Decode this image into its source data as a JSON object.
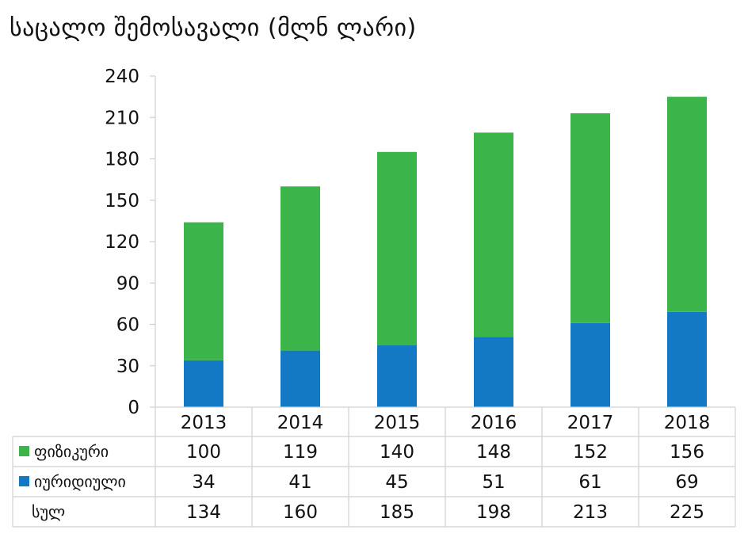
{
  "chart_data": {
    "type": "bar",
    "stacked": true,
    "title": "საცალო შემოსავალი (მლნ ლარი)",
    "categories": [
      "2013",
      "2014",
      "2015",
      "2016",
      "2017",
      "2018"
    ],
    "series": [
      {
        "name": "იურიდიული",
        "color": "#1479c4",
        "values": [
          34,
          41,
          45,
          51,
          61,
          69
        ]
      },
      {
        "name": "ფიზიკური",
        "color": "#3bb54a",
        "values": [
          100,
          119,
          140,
          148,
          152,
          156
        ]
      }
    ],
    "totals_label": "სულ",
    "totals": [
      134,
      160,
      185,
      198,
      213,
      225
    ],
    "ylim": [
      0,
      240
    ],
    "yticks": [
      0,
      30,
      60,
      90,
      120,
      150,
      180,
      210,
      240
    ],
    "data_table": {
      "rows": [
        {
          "label": "ფიზიკური",
          "legend_color": "#3bb54a",
          "values": [
            100,
            119,
            140,
            148,
            152,
            156
          ]
        },
        {
          "label": "იურიდიული",
          "legend_color": "#1479c4",
          "values": [
            34,
            41,
            45,
            51,
            61,
            69
          ]
        },
        {
          "label": "სულ",
          "legend_color": "",
          "values": [
            134,
            160,
            185,
            198,
            213,
            225
          ]
        }
      ]
    }
  }
}
